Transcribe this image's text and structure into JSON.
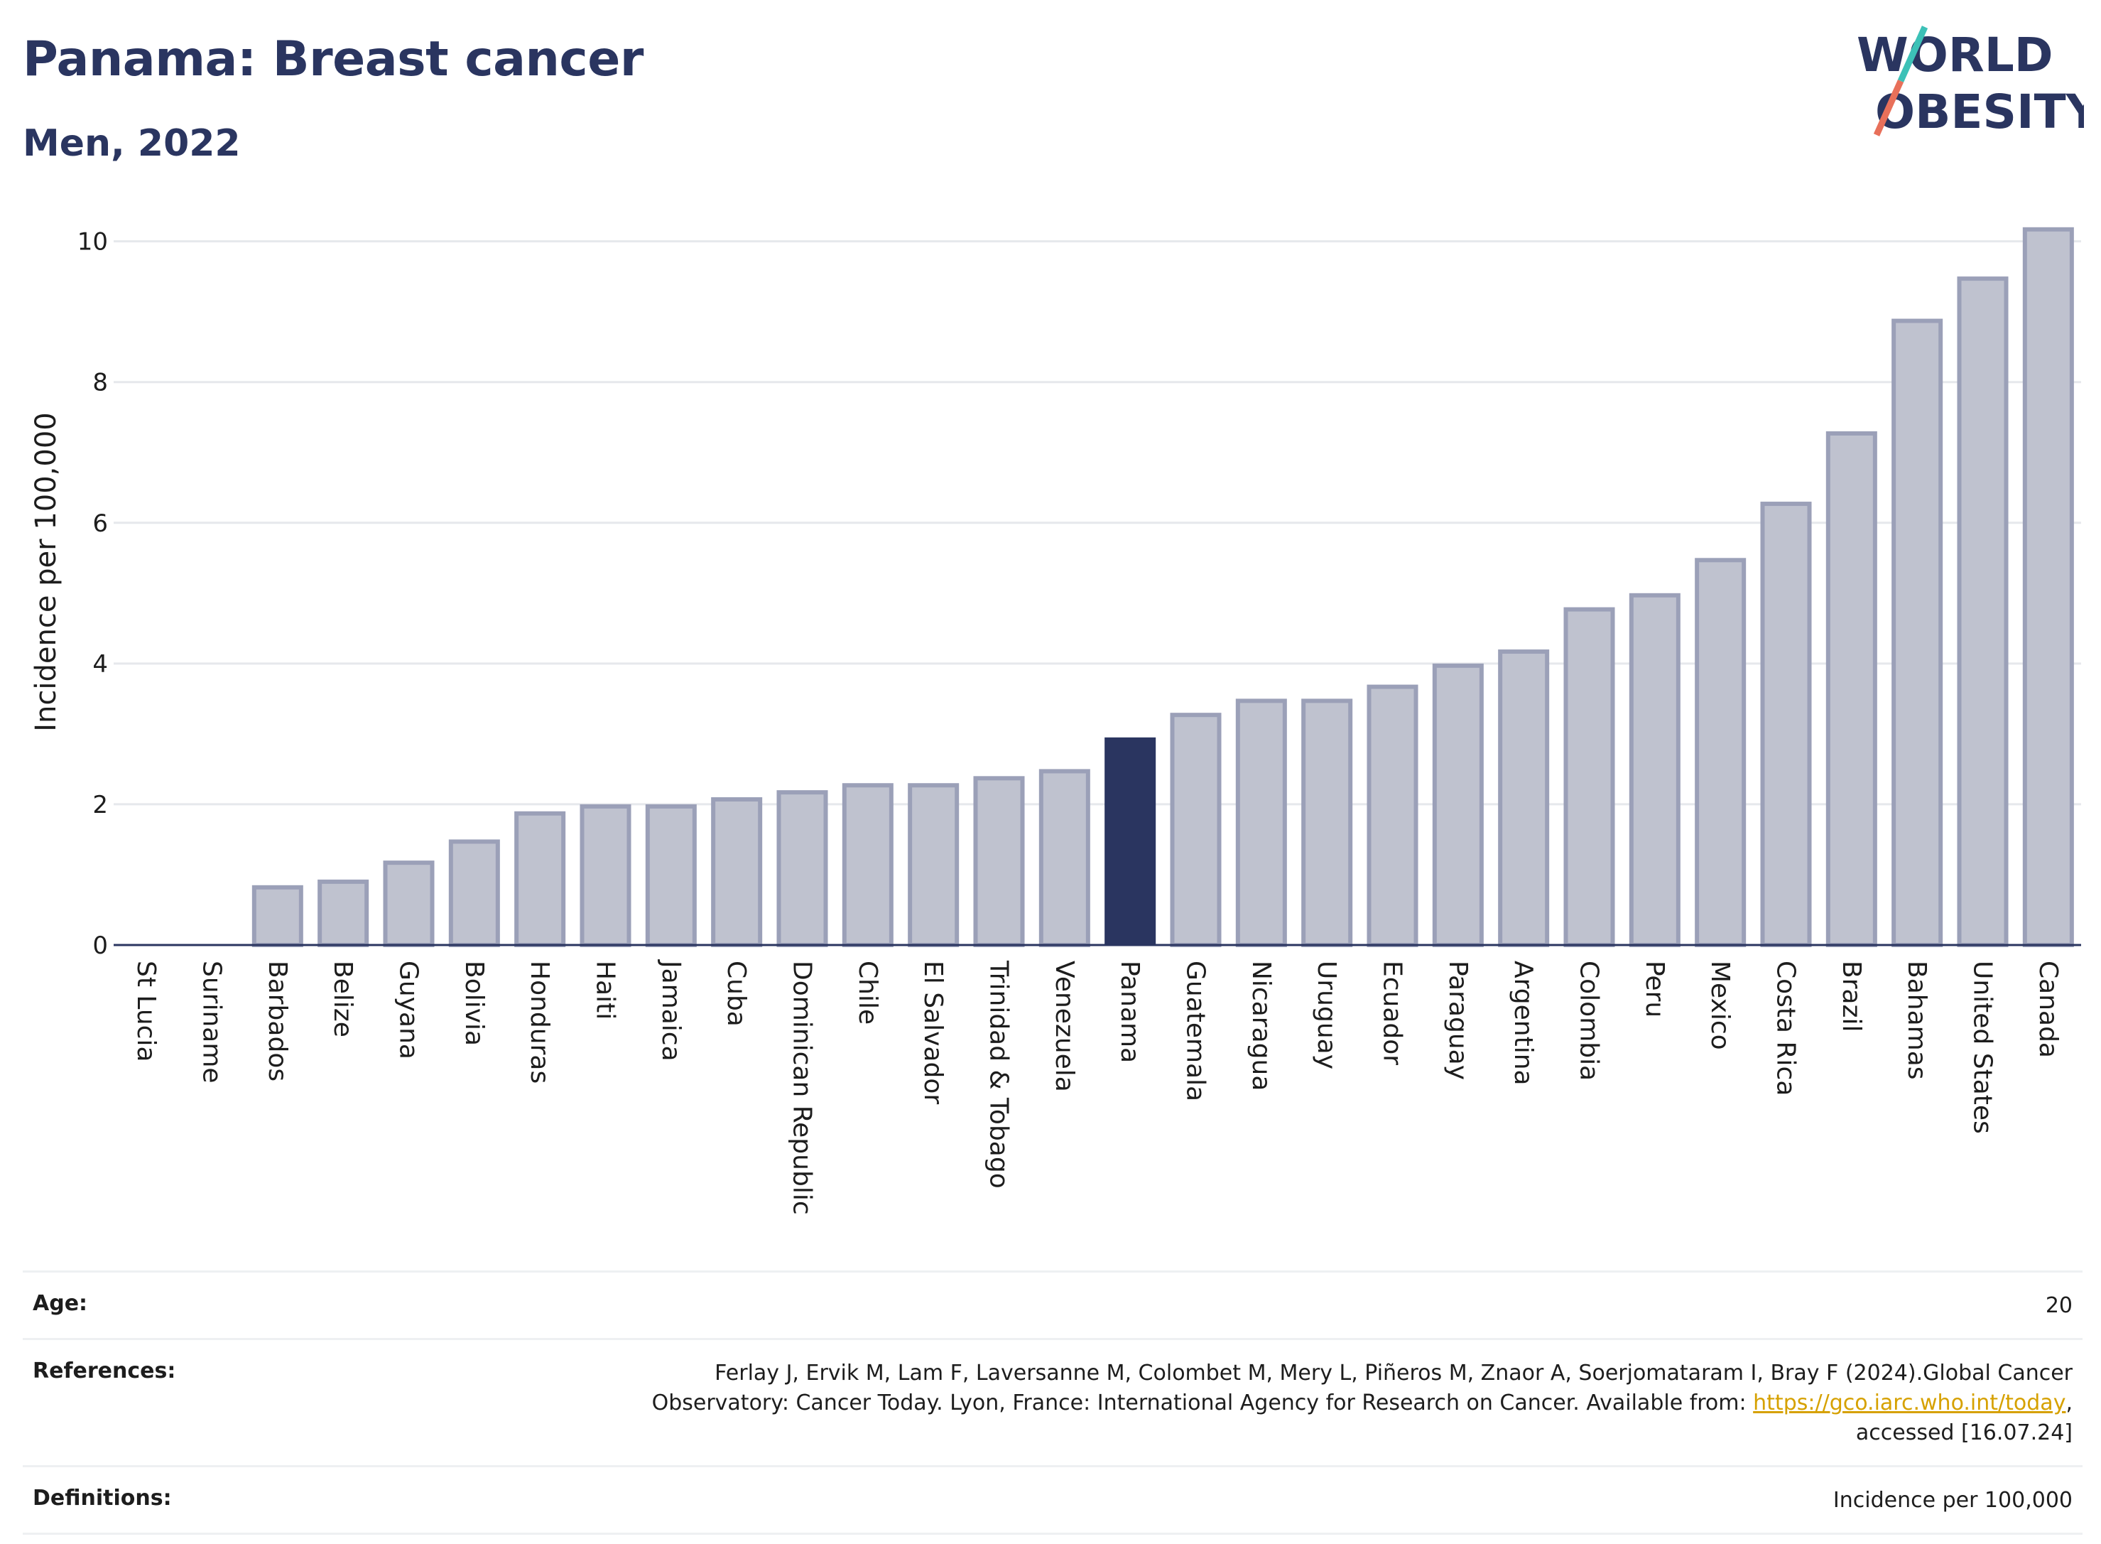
{
  "header": {
    "title": "Panama: Breast cancer",
    "subtitle": "Men, 2022"
  },
  "logo": {
    "line1": "WORLD",
    "line2": "OBESITY",
    "colors": {
      "text": "#2a3560",
      "slash_teal": "#3cc1b7",
      "slash_coral": "#e8705a"
    }
  },
  "chart_data": {
    "type": "bar",
    "ylabel": "Incidence per 100,000",
    "xlabel": "",
    "ylim": [
      0,
      10.4
    ],
    "yticks": [
      0,
      2,
      4,
      6,
      8,
      10
    ],
    "grid": true,
    "highlight": "Panama",
    "colors": {
      "bar": "#bfc2cf",
      "bar_border": "#9ba0b8",
      "highlight": "#2a3560"
    },
    "categories": [
      "St Lucia",
      "Suriname",
      "Barbados",
      "Belize",
      "Guyana",
      "Bolivia",
      "Honduras",
      "Haiti",
      "Jamaica",
      "Cuba",
      "Dominican Republic",
      "Chile",
      "El Salvador",
      "Trinidad & Tobago",
      "Venezuela",
      "Panama",
      "Guatemala",
      "Nicaragua",
      "Uruguay",
      "Ecuador",
      "Paraguay",
      "Argentina",
      "Colombia",
      "Peru",
      "Mexico",
      "Costa Rica",
      "Brazil",
      "Bahamas",
      "United States",
      "Canada"
    ],
    "values": [
      0.0,
      0.0,
      0.85,
      0.93,
      1.2,
      1.5,
      1.9,
      2.0,
      2.0,
      2.1,
      2.2,
      2.3,
      2.3,
      2.4,
      2.5,
      2.95,
      3.3,
      3.5,
      3.5,
      3.7,
      4.0,
      4.2,
      4.8,
      5.0,
      5.5,
      6.3,
      7.3,
      8.9,
      9.5,
      10.2
    ]
  },
  "info": {
    "age_label": "Age:",
    "age_value": "20",
    "references_label": "References:",
    "references_text_1": "Ferlay J, Ervik M, Lam F, Laversanne M, Colombet M, Mery L, Piñeros M, Znaor A, Soerjomataram I, Bray F (2024).Global Cancer Observatory: Cancer Today. Lyon, France: International Agency for Research on Cancer. Available from: ",
    "references_link": "https://gco.iarc.who.int/today",
    "references_text_2": ", accessed [16.07.24]",
    "definitions_label": "Definitions:",
    "definitions_value": "Incidence per 100,000"
  }
}
